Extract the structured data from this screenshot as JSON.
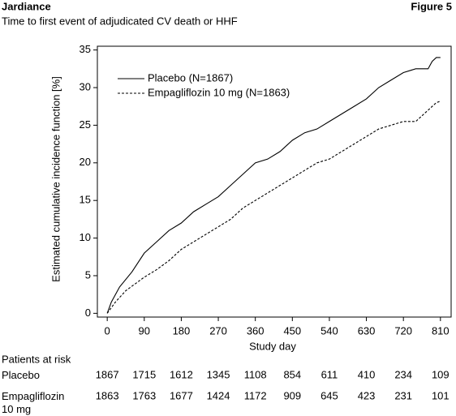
{
  "chart_data": {
    "type": "line",
    "header_left": "Jardiance",
    "header_right": "Figure 5",
    "title": "Time to first event of adjudicated CV death or HHF",
    "xlabel": "Study day",
    "ylabel": "Estimated cumulative incidence function [%]",
    "xlim": [
      -24,
      836
    ],
    "ylim": [
      -0.5,
      35.5
    ],
    "xticks": [
      0,
      90,
      180,
      270,
      360,
      450,
      540,
      630,
      720,
      810
    ],
    "yticks": [
      0,
      5,
      10,
      15,
      20,
      25,
      30,
      35
    ],
    "grid": false,
    "legend": "upper left",
    "series": [
      {
        "name": "Placebo (N=1867)",
        "color": "#000000",
        "dash": "solid",
        "x": [
          0,
          10,
          30,
          60,
          90,
          120,
          150,
          180,
          210,
          240,
          270,
          300,
          330,
          360,
          390,
          420,
          450,
          480,
          510,
          540,
          570,
          600,
          630,
          660,
          690,
          720,
          750,
          780,
          790,
          800,
          810
        ],
        "values": [
          0,
          1.5,
          3.5,
          5.5,
          8,
          9.5,
          11,
          12,
          13.5,
          14.5,
          15.5,
          17,
          18.5,
          20,
          20.5,
          21.5,
          23,
          24,
          24.5,
          25.5,
          26.5,
          27.5,
          28.5,
          30,
          31,
          32,
          32.5,
          32.5,
          33.5,
          34,
          34
        ]
      },
      {
        "name": "Empagliflozin 10 mg (N=1863)",
        "color": "#000000",
        "dash": "dashed",
        "x": [
          0,
          20,
          45,
          90,
          120,
          150,
          180,
          210,
          240,
          270,
          300,
          330,
          360,
          390,
          420,
          450,
          480,
          510,
          540,
          570,
          600,
          630,
          660,
          690,
          720,
          750,
          780,
          800,
          810
        ],
        "values": [
          0,
          1.5,
          3,
          4.8,
          5.8,
          7,
          8.5,
          9.5,
          10.5,
          11.5,
          12.5,
          14,
          15,
          16,
          17,
          18,
          19,
          20,
          20.5,
          21.5,
          22.5,
          23.5,
          24.5,
          25,
          25.5,
          25.5,
          27,
          28,
          28.2
        ]
      }
    ],
    "risk_table": {
      "title": "Patients at risk",
      "rows": [
        {
          "label": "Placebo",
          "values": [
            1867,
            1715,
            1612,
            1345,
            1108,
            854,
            611,
            410,
            234,
            109
          ]
        },
        {
          "label": "Empagliflozin 10 mg",
          "values": [
            1863,
            1763,
            1677,
            1424,
            1172,
            909,
            645,
            423,
            231,
            101
          ]
        }
      ]
    }
  }
}
